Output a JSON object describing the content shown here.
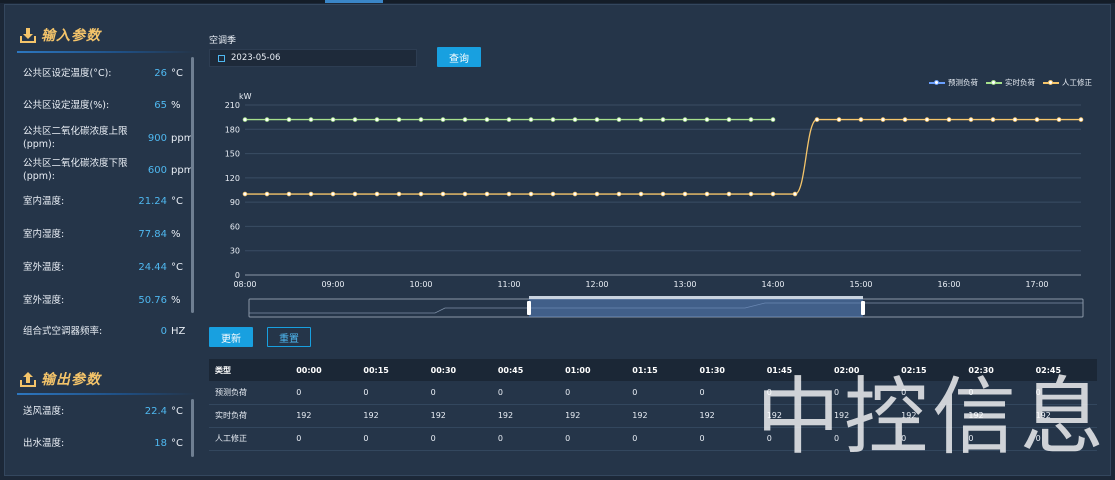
{
  "input_section": {
    "title": "输入参数",
    "params": [
      {
        "label": "公共区设定温度(°C):",
        "value": "26",
        "unit": "°C"
      },
      {
        "label": "公共区设定湿度(%):",
        "value": "65",
        "unit": "%"
      },
      {
        "label": "公共区二氧化碳浓度上限(ppm):",
        "value": "900",
        "unit": "ppm"
      },
      {
        "label": "公共区二氧化碳浓度下限(ppm):",
        "value": "600",
        "unit": "ppm"
      },
      {
        "label": "室内温度:",
        "value": "21.24",
        "unit": "°C"
      },
      {
        "label": "室内湿度:",
        "value": "77.84",
        "unit": "%"
      },
      {
        "label": "室外温度:",
        "value": "24.44",
        "unit": "°C"
      },
      {
        "label": "室外湿度:",
        "value": "50.76",
        "unit": "%"
      },
      {
        "label": "组合式空调器频率:",
        "value": "0",
        "unit": "HZ"
      }
    ]
  },
  "output_section": {
    "title": "输出参数",
    "params": [
      {
        "label": "送风温度:",
        "value": "22.4",
        "unit": "°C"
      },
      {
        "label": "出水温度:",
        "value": "18",
        "unit": "°C"
      }
    ]
  },
  "filter": {
    "season_label": "空调季",
    "date_value": "2023-05-06",
    "query_button": "查询"
  },
  "actions": {
    "update_button": "更新",
    "reset_button": "重置"
  },
  "colors": {
    "predicted": "#6aa0ff",
    "realtime": "#a6e08c",
    "manual": "#f5c56a",
    "accent": "#18a0e0"
  },
  "chart_data": {
    "type": "line",
    "ylabel": "kW",
    "ylim": [
      0,
      210
    ],
    "yticks": [
      0,
      30,
      60,
      90,
      120,
      150,
      180,
      210
    ],
    "xlim": [
      "08:00",
      "17:30"
    ],
    "xticks": [
      "08:00",
      "09:00",
      "10:00",
      "11:00",
      "12:00",
      "13:00",
      "14:00",
      "15:00",
      "16:00",
      "17:00"
    ],
    "grid": true,
    "legend_position": "top-right",
    "series": [
      {
        "name": "预测负荷",
        "color": "#6aa0ff",
        "points": []
      },
      {
        "name": "实时负荷",
        "color": "#a6e08c",
        "points": [
          [
            "08:00",
            192
          ],
          [
            "08:15",
            192
          ],
          [
            "08:30",
            192
          ],
          [
            "08:45",
            192
          ],
          [
            "09:00",
            192
          ],
          [
            "09:15",
            192
          ],
          [
            "09:30",
            192
          ],
          [
            "09:45",
            192
          ],
          [
            "10:00",
            192
          ],
          [
            "10:15",
            192
          ],
          [
            "10:30",
            192
          ],
          [
            "10:45",
            192
          ],
          [
            "11:00",
            192
          ],
          [
            "11:15",
            192
          ],
          [
            "11:30",
            192
          ],
          [
            "11:45",
            192
          ],
          [
            "12:00",
            192
          ],
          [
            "12:15",
            192
          ],
          [
            "12:30",
            192
          ],
          [
            "12:45",
            192
          ],
          [
            "13:00",
            192
          ],
          [
            "13:15",
            192
          ],
          [
            "13:30",
            192
          ],
          [
            "13:45",
            192
          ],
          [
            "14:00",
            192
          ]
        ]
      },
      {
        "name": "人工修正",
        "color": "#f5c56a",
        "points": [
          [
            "08:00",
            100
          ],
          [
            "08:15",
            100
          ],
          [
            "08:30",
            100
          ],
          [
            "08:45",
            100
          ],
          [
            "09:00",
            100
          ],
          [
            "09:15",
            100
          ],
          [
            "09:30",
            100
          ],
          [
            "09:45",
            100
          ],
          [
            "10:00",
            100
          ],
          [
            "10:15",
            100
          ],
          [
            "10:30",
            100
          ],
          [
            "10:45",
            100
          ],
          [
            "11:00",
            100
          ],
          [
            "11:15",
            100
          ],
          [
            "11:30",
            100
          ],
          [
            "11:45",
            100
          ],
          [
            "12:00",
            100
          ],
          [
            "12:15",
            100
          ],
          [
            "12:30",
            100
          ],
          [
            "12:45",
            100
          ],
          [
            "13:00",
            100
          ],
          [
            "13:15",
            100
          ],
          [
            "13:30",
            100
          ],
          [
            "13:45",
            100
          ],
          [
            "14:00",
            100
          ],
          [
            "14:15",
            100
          ],
          [
            "14:30",
            192
          ],
          [
            "14:45",
            192
          ],
          [
            "15:00",
            192
          ],
          [
            "15:15",
            192
          ],
          [
            "15:30",
            192
          ],
          [
            "15:45",
            192
          ],
          [
            "16:00",
            192
          ],
          [
            "16:15",
            192
          ],
          [
            "16:30",
            192
          ],
          [
            "16:45",
            192
          ],
          [
            "17:00",
            192
          ],
          [
            "17:15",
            192
          ],
          [
            "17:30",
            192
          ]
        ]
      }
    ]
  },
  "table": {
    "headers": [
      "类型",
      "00:00",
      "00:15",
      "00:30",
      "00:45",
      "01:00",
      "01:15",
      "01:30",
      "01:45",
      "02:00",
      "02:15",
      "02:30",
      "02:45"
    ],
    "rows": [
      {
        "label": "预测负荷",
        "values": [
          "0",
          "0",
          "0",
          "0",
          "0",
          "0",
          "0",
          "0",
          "0",
          "0",
          "0",
          "0"
        ]
      },
      {
        "label": "实时负荷",
        "values": [
          "192",
          "192",
          "192",
          "192",
          "192",
          "192",
          "192",
          "192",
          "192",
          "192",
          "192",
          "192"
        ]
      },
      {
        "label": "人工修正",
        "values": [
          "0",
          "0",
          "0",
          "0",
          "0",
          "0",
          "0",
          "0",
          "0",
          "0",
          "0",
          "0"
        ]
      }
    ]
  },
  "watermark": "中控信息"
}
